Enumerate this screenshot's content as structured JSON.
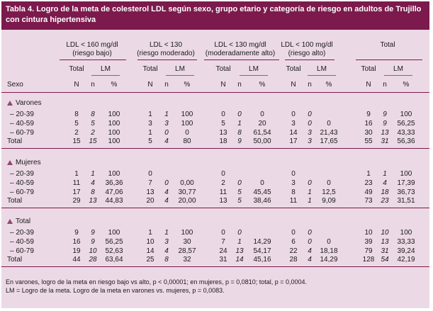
{
  "title": "Tabla 4. Logro de la meta de colesterol LDL según sexo, grupo etario y categoría de riesgo en adultos de Trujillo con cintura hipertensiva",
  "header": {
    "groups": [
      {
        "line1": "LDL < 160 mg/dl",
        "line2": "(riesgo bajo)"
      },
      {
        "line1": "LDL < 130",
        "line2": "(riesgo moderado)"
      },
      {
        "line1": "LDL < 130 mg/dl",
        "line2": "(moderadamente alto)"
      },
      {
        "line1": "LDL < 100 mg/dl",
        "line2": "(riesgo alto)"
      },
      {
        "line1": "Total",
        "line2": ""
      }
    ],
    "total_label": "Total",
    "lm_label": "LM",
    "sexo_label": "Sexo",
    "col_N": "N",
    "col_n": "n",
    "col_pct": "%"
  },
  "sections": [
    {
      "name": "Varones",
      "rows": [
        {
          "label": "– 20-39",
          "values": [
            "8",
            "8",
            "100",
            "1",
            "1",
            "100",
            "0",
            "0",
            "0",
            "0",
            "0",
            "",
            "9",
            "9",
            "100"
          ]
        },
        {
          "label": "– 40-59",
          "values": [
            "5",
            "5",
            "100",
            "3",
            "3",
            "100",
            "5",
            "1",
            "20",
            "3",
            "0",
            "0",
            "16",
            "9",
            "56,25"
          ]
        },
        {
          "label": "– 60-79",
          "values": [
            "2",
            "2",
            "100",
            "1",
            "0",
            "0",
            "13",
            "8",
            "61,54",
            "14",
            "3",
            "21,43",
            "30",
            "13",
            "43,33"
          ]
        },
        {
          "label": "Total",
          "values": [
            "15",
            "15",
            "100",
            "5",
            "4",
            "80",
            "18",
            "9",
            "50,00",
            "17",
            "3",
            "17,65",
            "55",
            "31",
            "56,36"
          ]
        }
      ]
    },
    {
      "name": "Mujeres",
      "rows": [
        {
          "label": "– 20-39",
          "values": [
            "1",
            "1",
            "100",
            "0",
            "",
            "",
            "0",
            "",
            "",
            "0",
            "",
            "",
            "1",
            "1",
            "100"
          ]
        },
        {
          "label": "– 40-59",
          "values": [
            "11",
            "4",
            "36,36",
            "7",
            "0",
            "0,00",
            "2",
            "0",
            "0",
            "3",
            "0",
            "0",
            "23",
            "4",
            "17,39"
          ]
        },
        {
          "label": "– 60-79",
          "values": [
            "17",
            "8",
            "47,06",
            "13",
            "4",
            "30,77",
            "11",
            "5",
            "45,45",
            "8",
            "1",
            "12,5",
            "49",
            "18",
            "36,73"
          ]
        },
        {
          "label": "Total",
          "values": [
            "29",
            "13",
            "44,83",
            "20",
            "4",
            "20,00",
            "13",
            "5",
            "38,46",
            "11",
            "1",
            "9,09",
            "73",
            "23",
            "31,51"
          ]
        }
      ]
    },
    {
      "name": "Total",
      "rows": [
        {
          "label": "– 20-39",
          "values": [
            "9",
            "9",
            "100",
            "1",
            "1",
            "100",
            "0",
            "0",
            "",
            "0",
            "0",
            "",
            "10",
            "10",
            "100"
          ]
        },
        {
          "label": "– 40-59",
          "values": [
            "16",
            "9",
            "56,25",
            "10",
            "3",
            "30",
            "7",
            "1",
            "14,29",
            "6",
            "0",
            "0",
            "39",
            "13",
            "33,33"
          ]
        },
        {
          "label": "– 60-79",
          "values": [
            "19",
            "10",
            "52,63",
            "14",
            "4",
            "28,57",
            "24",
            "13",
            "54,17",
            "22",
            "4",
            "18,18",
            "79",
            "31",
            "39,24"
          ]
        },
        {
          "label": "Total",
          "values": [
            "44",
            "28",
            "63,64",
            "25",
            "8",
            "32",
            "31",
            "14",
            "45,16",
            "28",
            "4",
            "14,29",
            "128",
            "54",
            "42,19"
          ]
        }
      ]
    }
  ],
  "footnotes": [
    "En varones, logro de la meta en riesgo bajo vs alto, p < 0,00001; en mujeres, p = 0,0810; total, p = 0,0004.",
    "LM = Logro de la meta. Logro de la meta en varones vs. mujeres, p = 0,0083."
  ],
  "colors": {
    "accent": "#7c1a4d",
    "background": "#ecd9e6",
    "marker": "#8e4a6f"
  }
}
